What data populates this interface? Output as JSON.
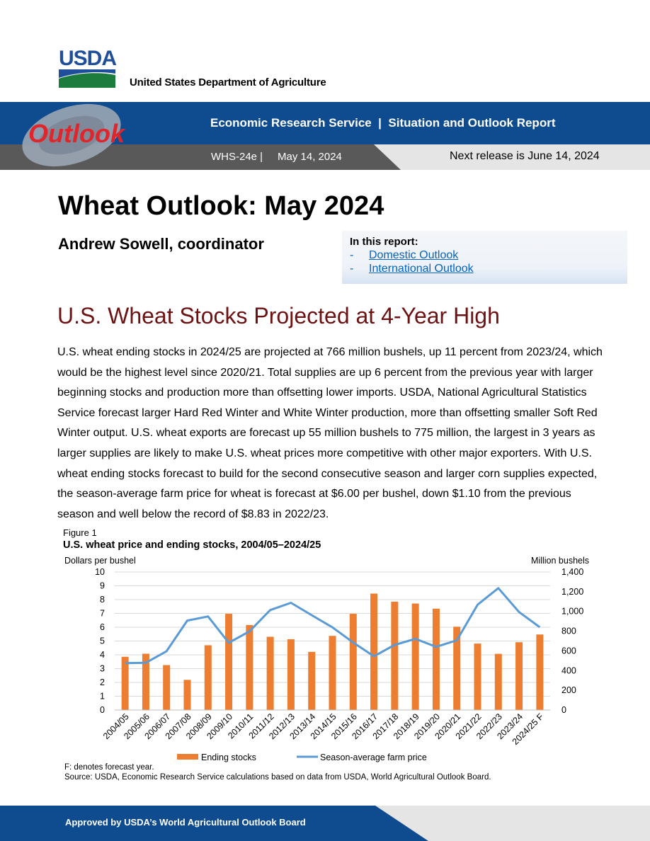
{
  "header": {
    "logo_text": "USDA",
    "department": "United States Department of Agriculture",
    "banner_logo_text": "Outlook",
    "service": "Economic Research Service  |  Situation and Outlook Report",
    "report_id": "WHS-24e |",
    "report_date": "May 14, 2024",
    "next_release": "Next release is June 14, 2024"
  },
  "title": "Wheat Outlook: May 2024",
  "coordinator": "Andrew Sowell, coordinator",
  "in_report": {
    "heading": "In this report:",
    "items": [
      {
        "dash": "-",
        "label": "Domestic Outlook"
      },
      {
        "dash": "-",
        "label": "International Outlook"
      }
    ]
  },
  "headline": "U.S. Wheat Stocks Projected at 4-Year High",
  "body": "U.S. wheat ending stocks in 2024/25 are projected at 766 million bushels, up 11 percent from 2023/24, which would be the highest level since 2020/21. Total supplies are up 6 percent from the previous year with larger beginning stocks and production more than offsetting lower imports. USDA, National Agricultural Statistics Service forecast larger Hard Red Winter and White Winter production, more than offsetting smaller Soft Red Winter output. U.S. wheat exports are forecast up 55 million bushels to 775 million, the largest in 3 years as larger supplies are likely to make U.S. wheat prices more competitive with other major exporters. With U.S. wheat ending stocks forecast to build for the second consecutive season and larger corn supplies expected, the season-average farm price for wheat is forecast at $6.00 per bushel, down $1.10 from the previous season and well below the record of $8.83 in 2022/23.",
  "figure": {
    "label": "Figure 1",
    "title": "U.S. wheat price and ending stocks, 2004/05–2024/25",
    "note": "F: denotes forecast year.",
    "source": "Source: USDA, Economic Research Service calculations based on data from USDA, World Agricultural Outlook Board."
  },
  "chart_data": {
    "type": "bar",
    "categories": [
      "2004/05",
      "2005/06",
      "2006/07",
      "2007/08",
      "2008/09",
      "2009/10",
      "2010/11",
      "2011/12",
      "2012/13",
      "2013/14",
      "2014/15",
      "2015/16",
      "2016/17",
      "2017/18",
      "2018/19",
      "2019/20",
      "2020/21",
      "2021/22",
      "2022/23",
      "2023/24",
      "2024/25 F"
    ],
    "series": [
      {
        "name": "Ending stocks",
        "type": "bar",
        "axis": "right",
        "color": "#ed7d31",
        "values": [
          540,
          571,
          456,
          306,
          657,
          976,
          862,
          743,
          718,
          590,
          752,
          976,
          1181,
          1099,
          1080,
          1028,
          845,
          674,
          570,
          688,
          766
        ]
      },
      {
        "name": "Season-average farm price",
        "type": "line",
        "axis": "left",
        "color": "#5b9bd5",
        "values": [
          3.4,
          3.42,
          4.26,
          6.48,
          6.78,
          4.87,
          5.7,
          7.24,
          7.77,
          6.87,
          5.99,
          4.89,
          3.89,
          4.72,
          5.16,
          4.58,
          5.05,
          7.63,
          8.83,
          7.1,
          6.0
        ]
      }
    ],
    "left_axis": {
      "label": "Dollars per bushel",
      "range": [
        0,
        10
      ],
      "ticks": [
        "0",
        "1",
        "2",
        "3",
        "4",
        "5",
        "6",
        "7",
        "8",
        "9",
        "10"
      ]
    },
    "right_axis": {
      "label": "Million bushels",
      "range": [
        0,
        1400
      ],
      "ticks": [
        "0",
        "200",
        "400",
        "600",
        "800",
        "1,000",
        "1,200",
        "1,400"
      ]
    },
    "grid": true,
    "legend_position": "bottom"
  },
  "footer": {
    "approved": "Approved by USDA’s World Agricultural Outlook Board"
  }
}
